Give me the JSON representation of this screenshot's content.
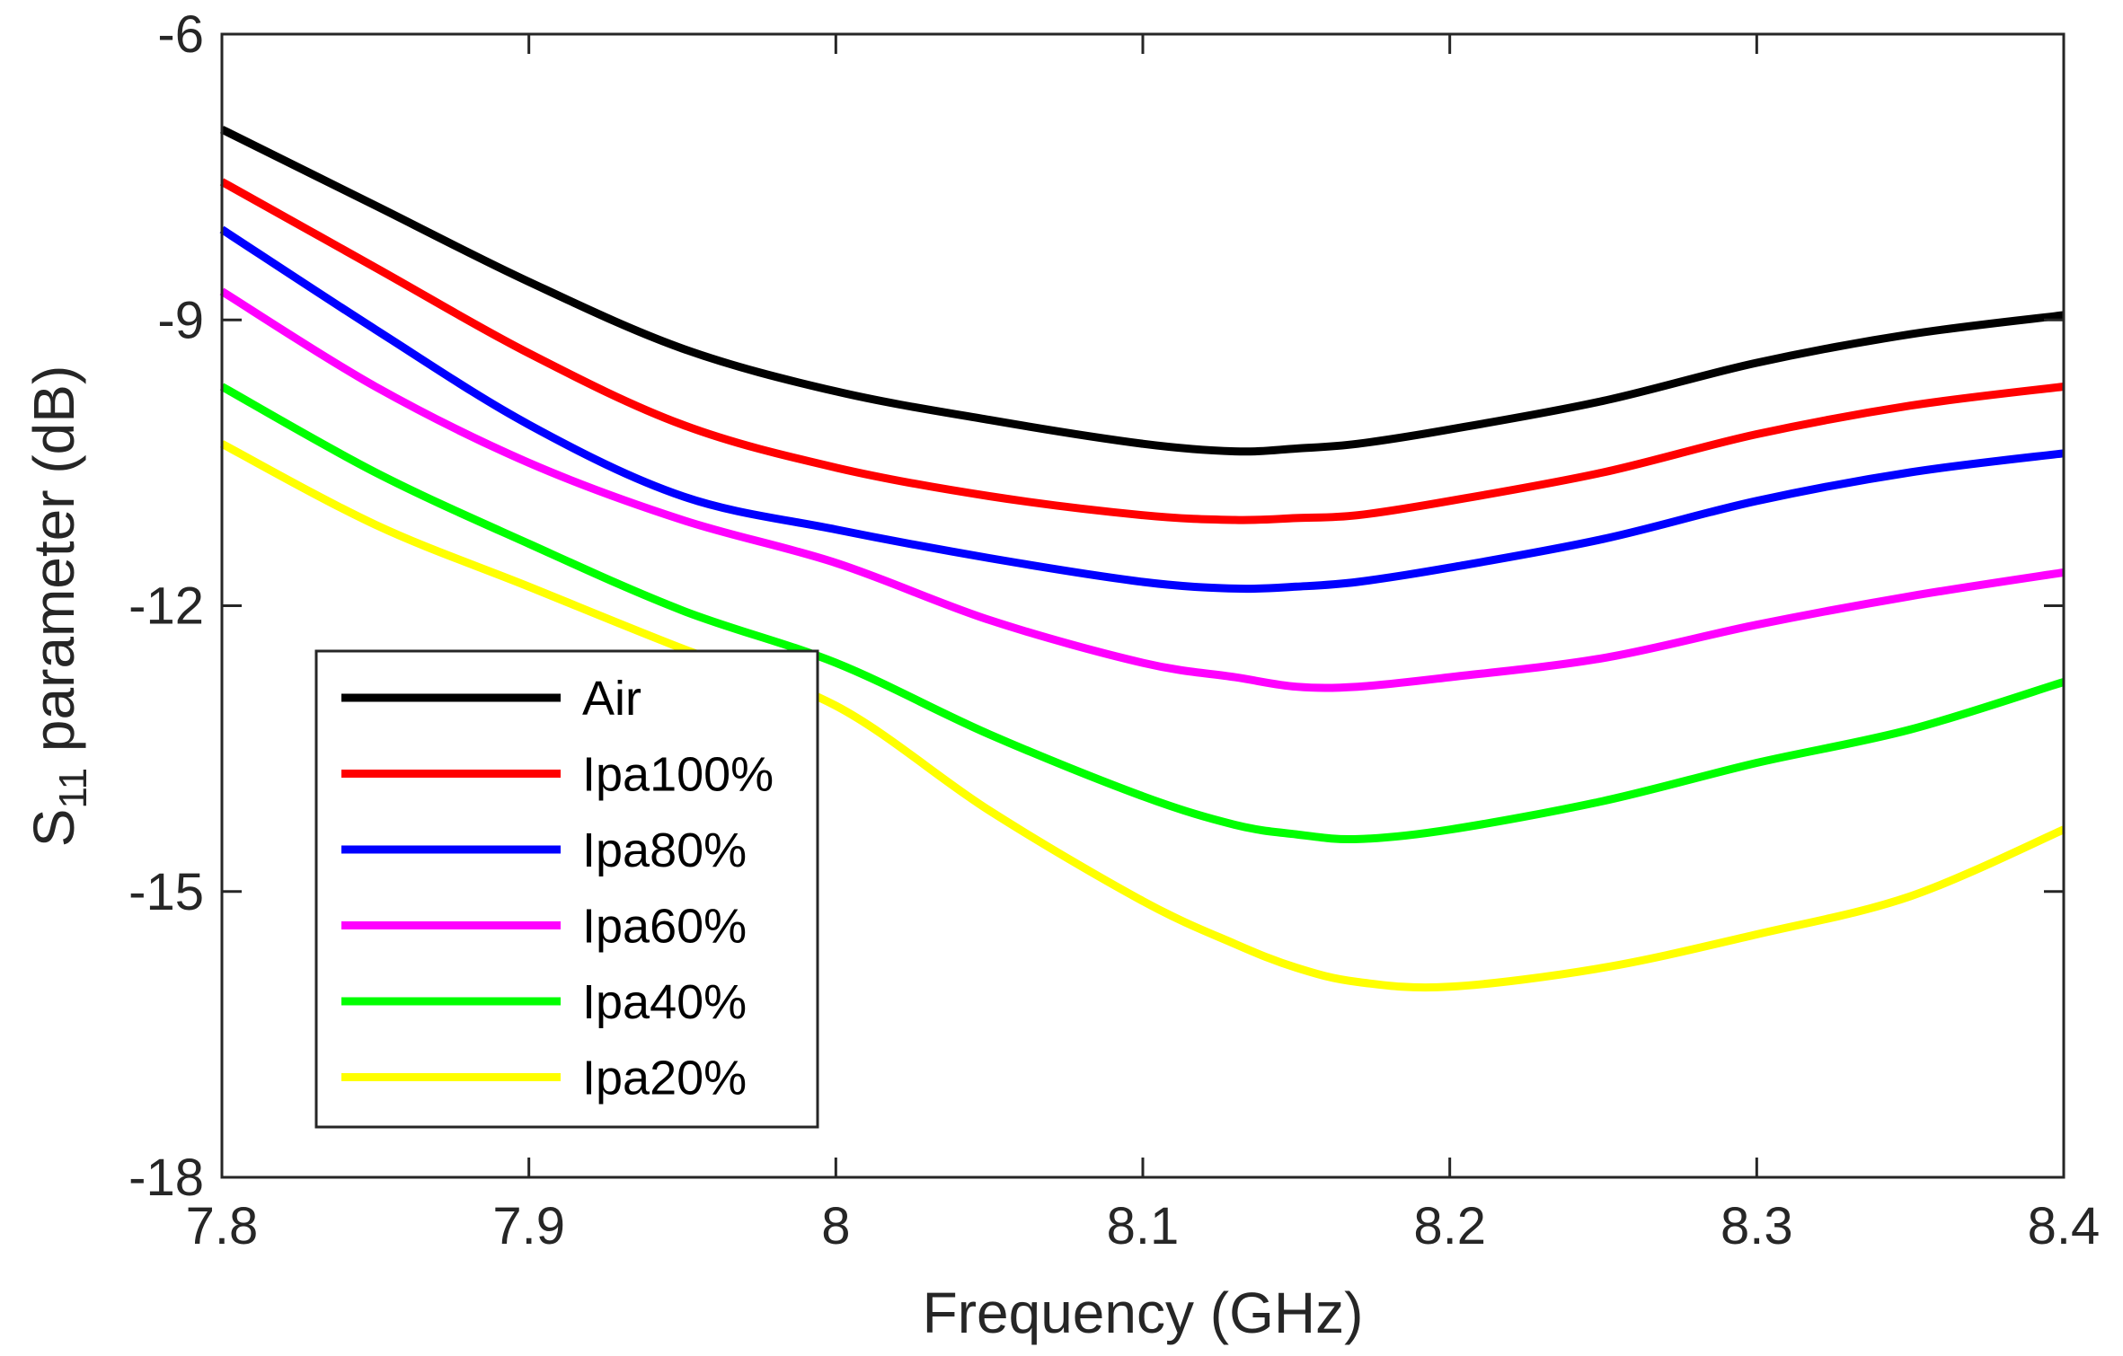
{
  "chart_data": {
    "type": "line",
    "title": "",
    "xlabel": "Frequency (GHz)",
    "ylabel": {
      "main": "S",
      "sub": "11",
      "rest": " parameter (dB)"
    },
    "xlim": [
      7.8,
      8.4
    ],
    "ylim": [
      -18,
      -6
    ],
    "xticks": [
      "7.8",
      "7.9",
      "8",
      "8.1",
      "8.2",
      "8.3",
      "8.4"
    ],
    "xtick_values": [
      7.8,
      7.9,
      8.0,
      8.1,
      8.2,
      8.3,
      8.4
    ],
    "yticks": [
      "-6",
      "-9",
      "-12",
      "-15",
      "-18"
    ],
    "ytick_values": [
      -6,
      -9,
      -12,
      -15,
      -18
    ],
    "grid": false,
    "legend_position": "lower-left",
    "x": [
      7.8,
      7.85,
      7.9,
      7.95,
      8.0,
      8.05,
      8.1,
      8.13,
      8.15,
      8.17,
      8.2,
      8.25,
      8.3,
      8.35,
      8.4
    ],
    "series": [
      {
        "name": "Air",
        "color": "#000000",
        "values": [
          -7.0,
          -7.8,
          -8.6,
          -9.3,
          -9.75,
          -10.05,
          -10.3,
          -10.38,
          -10.35,
          -10.3,
          -10.15,
          -9.85,
          -9.45,
          -9.15,
          -8.95
        ]
      },
      {
        "name": "Ipa100%",
        "color": "#ff0000",
        "values": [
          -7.55,
          -8.45,
          -9.35,
          -10.1,
          -10.55,
          -10.85,
          -11.05,
          -11.1,
          -11.08,
          -11.05,
          -10.9,
          -10.6,
          -10.2,
          -9.9,
          -9.7
        ]
      },
      {
        "name": "Ipa80%",
        "color": "#0000ff",
        "values": [
          -8.05,
          -9.1,
          -10.1,
          -10.85,
          -11.2,
          -11.5,
          -11.75,
          -11.82,
          -11.8,
          -11.75,
          -11.6,
          -11.3,
          -10.9,
          -10.6,
          -10.4
        ]
      },
      {
        "name": "Ipa60%",
        "color": "#ff00ff",
        "values": [
          -8.7,
          -9.7,
          -10.5,
          -11.1,
          -11.55,
          -12.15,
          -12.6,
          -12.75,
          -12.85,
          -12.85,
          -12.75,
          -12.55,
          -12.2,
          -11.9,
          -11.65
        ]
      },
      {
        "name": "Ipa40%",
        "color": "#00ff00",
        "values": [
          -9.7,
          -10.6,
          -11.35,
          -12.05,
          -12.6,
          -13.35,
          -14.0,
          -14.3,
          -14.4,
          -14.45,
          -14.35,
          -14.05,
          -13.65,
          -13.3,
          -12.8
        ]
      },
      {
        "name": "Ipa20%",
        "color": "#ffff00",
        "values": [
          -10.3,
          -11.15,
          -11.8,
          -12.45,
          -13.05,
          -14.15,
          -15.1,
          -15.55,
          -15.8,
          -15.95,
          -16.0,
          -15.8,
          -15.45,
          -15.05,
          -14.35
        ]
      }
    ]
  }
}
